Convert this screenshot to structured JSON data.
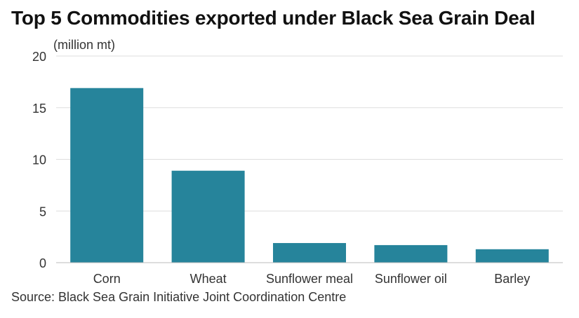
{
  "chart_data": {
    "type": "bar",
    "title": "Top 5 Commodities exported under Black Sea Grain Deal",
    "ylabel": "(million mt)",
    "xlabel": "",
    "categories": [
      "Corn",
      "Wheat",
      "Sunflower meal",
      "Sunflower oil",
      "Barley"
    ],
    "values": [
      16.9,
      8.9,
      1.9,
      1.7,
      1.3
    ],
    "ylim": [
      0,
      20
    ],
    "yticks": [
      0,
      5,
      10,
      15,
      20
    ],
    "grid": true,
    "legend": "none",
    "bar_color": "#26849b",
    "source": "Source: Black Sea Grain Initiative Joint Coordination Centre"
  }
}
